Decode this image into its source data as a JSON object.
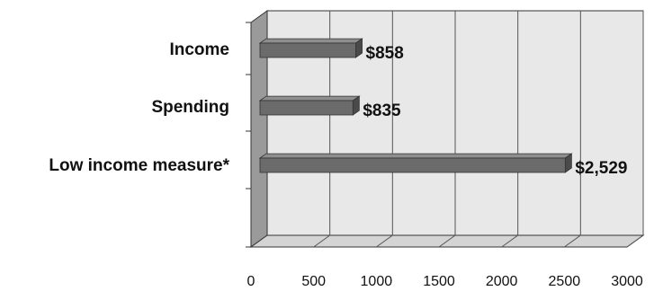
{
  "chart_data": {
    "type": "bar",
    "orientation": "horizontal",
    "categories": [
      "Income",
      "Spending",
      "Low income measure*"
    ],
    "values": [
      858,
      835,
      2529
    ],
    "data_labels": [
      "$858",
      "$835",
      "$2,529"
    ],
    "xlim": [
      0,
      3000
    ],
    "x_ticks": [
      "0",
      "500",
      "1000",
      "1500",
      "2000",
      "2500",
      "3000"
    ],
    "grid": true,
    "style": "3d",
    "colors": {
      "bar": "#6b6b6b",
      "bar_top": "#8e8e8e",
      "bar_side": "#4a4a4a",
      "plot_back": "#e8e8e8",
      "plot_floor": "#d4d4d4",
      "plot_side": "#9a9a9a",
      "grid": "#555555"
    }
  }
}
